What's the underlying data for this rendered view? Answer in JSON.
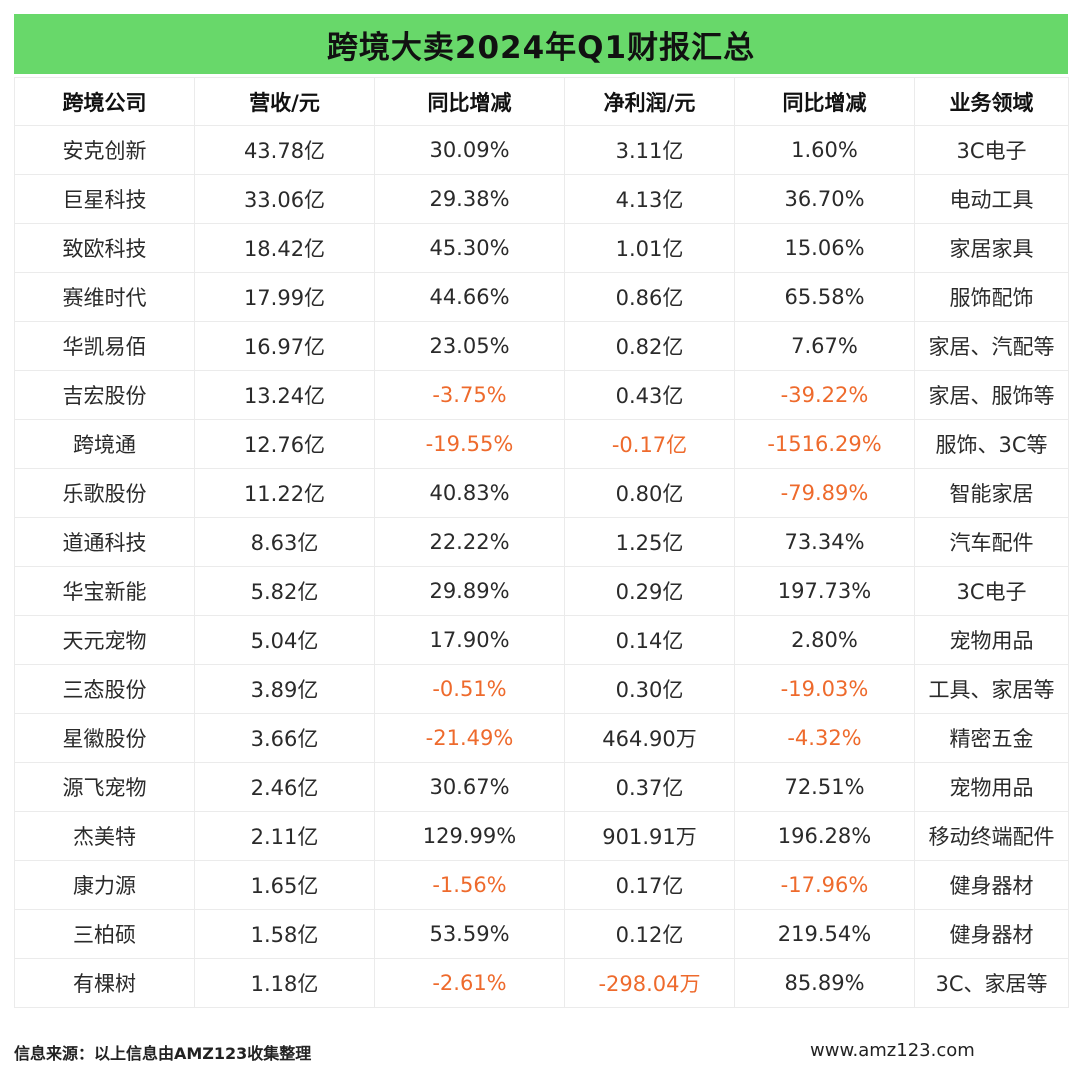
{
  "title": "跨境大卖2024年Q1财报汇总",
  "headers": [
    "跨境公司",
    "营收/元",
    "同比增减",
    "净利润/元",
    "同比增减",
    "业务领域"
  ],
  "rows": [
    [
      "安克创新",
      "43.78亿",
      "30.09%",
      "3.11亿",
      "1.60%",
      "3C电子"
    ],
    [
      "巨星科技",
      "33.06亿",
      "29.38%",
      "4.13亿",
      "36.70%",
      "电动工具"
    ],
    [
      "致欧科技",
      "18.42亿",
      "45.30%",
      "1.01亿",
      "15.06%",
      "家居家具"
    ],
    [
      "赛维时代",
      "17.99亿",
      "44.66%",
      "0.86亿",
      "65.58%",
      "服饰配饰"
    ],
    [
      "华凯易佰",
      "16.97亿",
      "23.05%",
      "0.82亿",
      "7.67%",
      "家居、汽配等"
    ],
    [
      "吉宏股份",
      "13.24亿",
      "-3.75%",
      "0.43亿",
      "-39.22%",
      "家居、服饰等"
    ],
    [
      "跨境通",
      "12.76亿",
      "-19.55%",
      "-0.17亿",
      "-1516.29%",
      "服饰、3C等"
    ],
    [
      "乐歌股份",
      "11.22亿",
      "40.83%",
      "0.80亿",
      "-79.89%",
      "智能家居"
    ],
    [
      "道通科技",
      "8.63亿",
      "22.22%",
      "1.25亿",
      "73.34%",
      "汽车配件"
    ],
    [
      "华宝新能",
      "5.82亿",
      "29.89%",
      "0.29亿",
      "197.73%",
      "3C电子"
    ],
    [
      "天元宠物",
      "5.04亿",
      "17.90%",
      "0.14亿",
      "2.80%",
      "宠物用品"
    ],
    [
      "三态股份",
      "3.89亿",
      "-0.51%",
      "0.30亿",
      "-19.03%",
      "工具、家居等"
    ],
    [
      "星徽股份",
      "3.66亿",
      "-21.49%",
      "464.90万",
      "-4.32%",
      "精密五金"
    ],
    [
      "源飞宠物",
      "2.46亿",
      "30.67%",
      "0.37亿",
      "72.51%",
      "宠物用品"
    ],
    [
      "杰美特",
      "2.11亿",
      "129.99%",
      "901.91万",
      "196.28%",
      "移动终端配件"
    ],
    [
      "康力源",
      "1.65亿",
      "-1.56%",
      "0.17亿",
      "-17.96%",
      "健身器材"
    ],
    [
      "三柏硕",
      "1.58亿",
      "53.59%",
      "0.12亿",
      "219.54%",
      "健身器材"
    ],
    [
      "有棵树",
      "1.18亿",
      "-2.61%",
      "-298.04万",
      "85.89%",
      "3C、家居等"
    ]
  ],
  "footer": {
    "source": "信息来源：以上信息由AMZ123收集整理",
    "website": "www.amz123.com"
  },
  "colors": {
    "title_bg": "#68d86a",
    "negative": "#ee6a2c"
  }
}
